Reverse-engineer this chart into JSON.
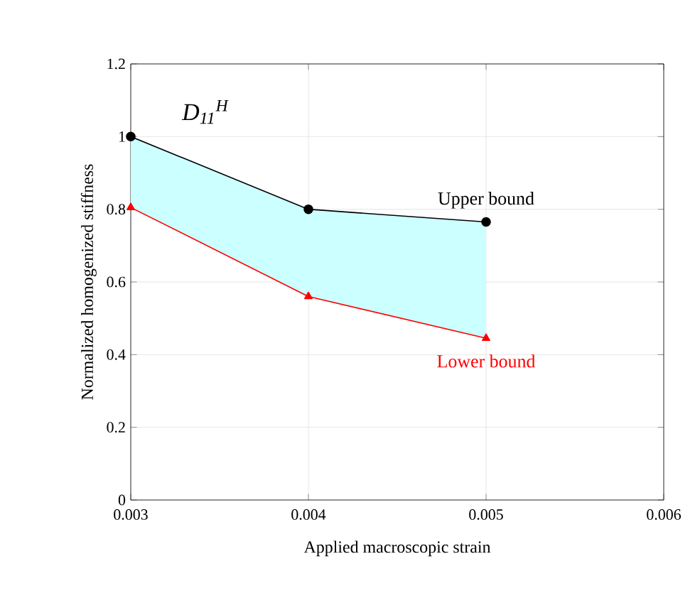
{
  "chart_data": {
    "type": "line",
    "xlabel": "Applied macroscopic strain",
    "ylabel": "Normalized homogenized stiffness",
    "x": [
      0.003,
      0.004,
      0.005
    ],
    "series": [
      {
        "name": "Upper bound",
        "color": "#000000",
        "marker": "circle",
        "values": [
          1.0,
          0.8,
          0.765
        ],
        "lower": [
          0.805,
          0.56,
          0.445
        ],
        "upper": [
          1.0,
          0.8,
          0.765
        ]
      },
      {
        "name": "Lower bound",
        "color": "#ff0000",
        "marker": "triangle",
        "values": [
          0.805,
          0.56,
          0.445
        ]
      }
    ],
    "xlim": [
      0.003,
      0.006
    ],
    "xticks": [
      0.003,
      0.004,
      0.005,
      0.006
    ],
    "ylim": [
      0,
      1.2
    ],
    "yticks": [
      0,
      0.2,
      0.4,
      0.6,
      0.8,
      1,
      1.2
    ],
    "grid": true,
    "line_style": "solid",
    "annotations": [
      "D$_{11}$$^{H}$"
    ]
  }
}
